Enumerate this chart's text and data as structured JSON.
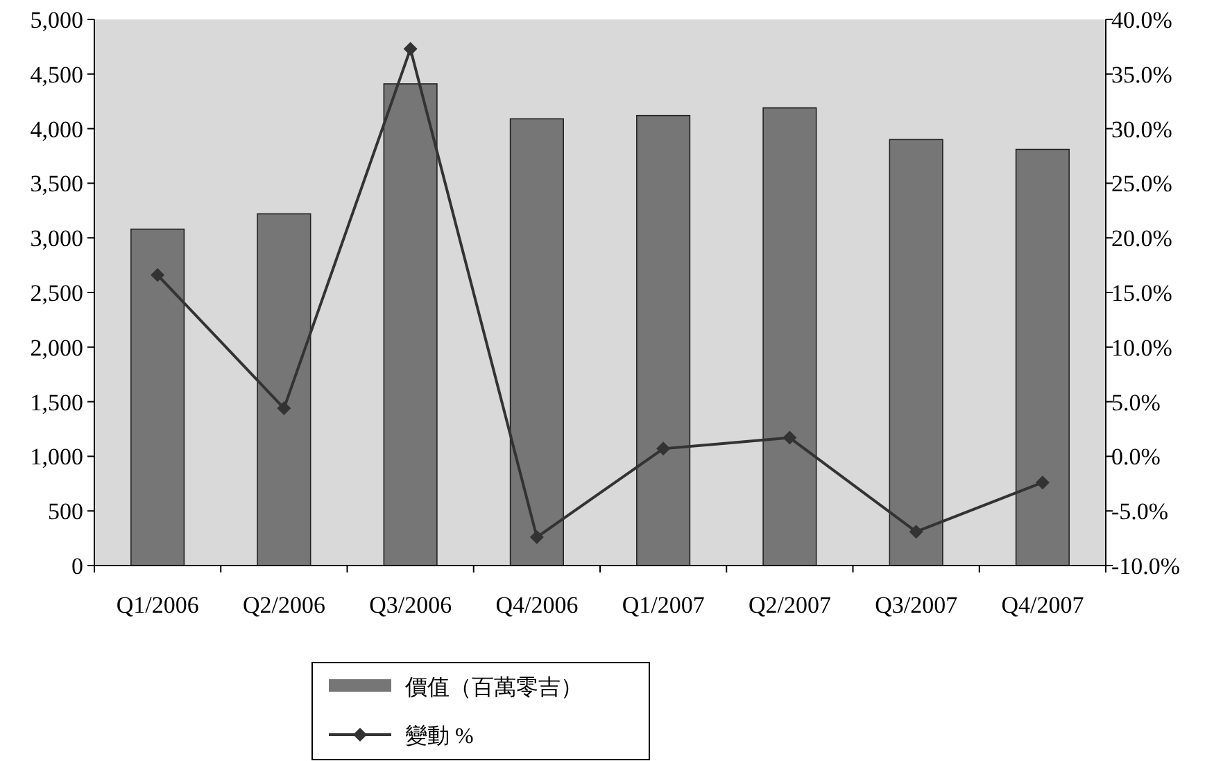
{
  "chart_data": {
    "type": "bar",
    "categories": [
      "Q1/2006",
      "Q2/2006",
      "Q3/2006",
      "Q4/2006",
      "Q1/2007",
      "Q2/2007",
      "Q3/2007",
      "Q4/2007"
    ],
    "series": [
      {
        "name": "價值（百萬零吉）",
        "color": "#767676",
        "values": [
          3080,
          3220,
          4410,
          4090,
          4120,
          4190,
          3900,
          3810
        ]
      },
      {
        "name": "變動 %",
        "type": "line",
        "axis": "y2",
        "color": "#333333",
        "marker": "diamond",
        "values": [
          16.6,
          4.4,
          37.3,
          -7.4,
          0.7,
          1.7,
          -6.9,
          -2.4
        ]
      }
    ],
    "ylim": [
      0,
      5000
    ],
    "yticks": [
      {
        "value": 0,
        "label": "0"
      },
      {
        "value": 500,
        "label": "500"
      },
      {
        "value": 1000,
        "label": "1,000"
      },
      {
        "value": 1500,
        "label": "1,500"
      },
      {
        "value": 2000,
        "label": "2,000"
      },
      {
        "value": 2500,
        "label": "2,500"
      },
      {
        "value": 3000,
        "label": "3,000"
      },
      {
        "value": 3500,
        "label": "3,500"
      },
      {
        "value": 4000,
        "label": "4,000"
      },
      {
        "value": 4500,
        "label": "4,500"
      },
      {
        "value": 5000,
        "label": "5,000"
      }
    ],
    "y2lim": [
      -10,
      40
    ],
    "y2ticks": [
      {
        "value": -10,
        "label": "-10.0%"
      },
      {
        "value": -5,
        "label": "-5.0%"
      },
      {
        "value": 0,
        "label": "0.0%"
      },
      {
        "value": 5,
        "label": "5.0%"
      },
      {
        "value": 10,
        "label": "10.0%"
      },
      {
        "value": 15,
        "label": "15.0%"
      },
      {
        "value": 20,
        "label": "20.0%"
      },
      {
        "value": 25,
        "label": "25.0%"
      },
      {
        "value": 30,
        "label": "30.0%"
      },
      {
        "value": 35,
        "label": "35.0%"
      },
      {
        "value": 40,
        "label": "40.0%"
      }
    ],
    "legend": "bottom"
  }
}
